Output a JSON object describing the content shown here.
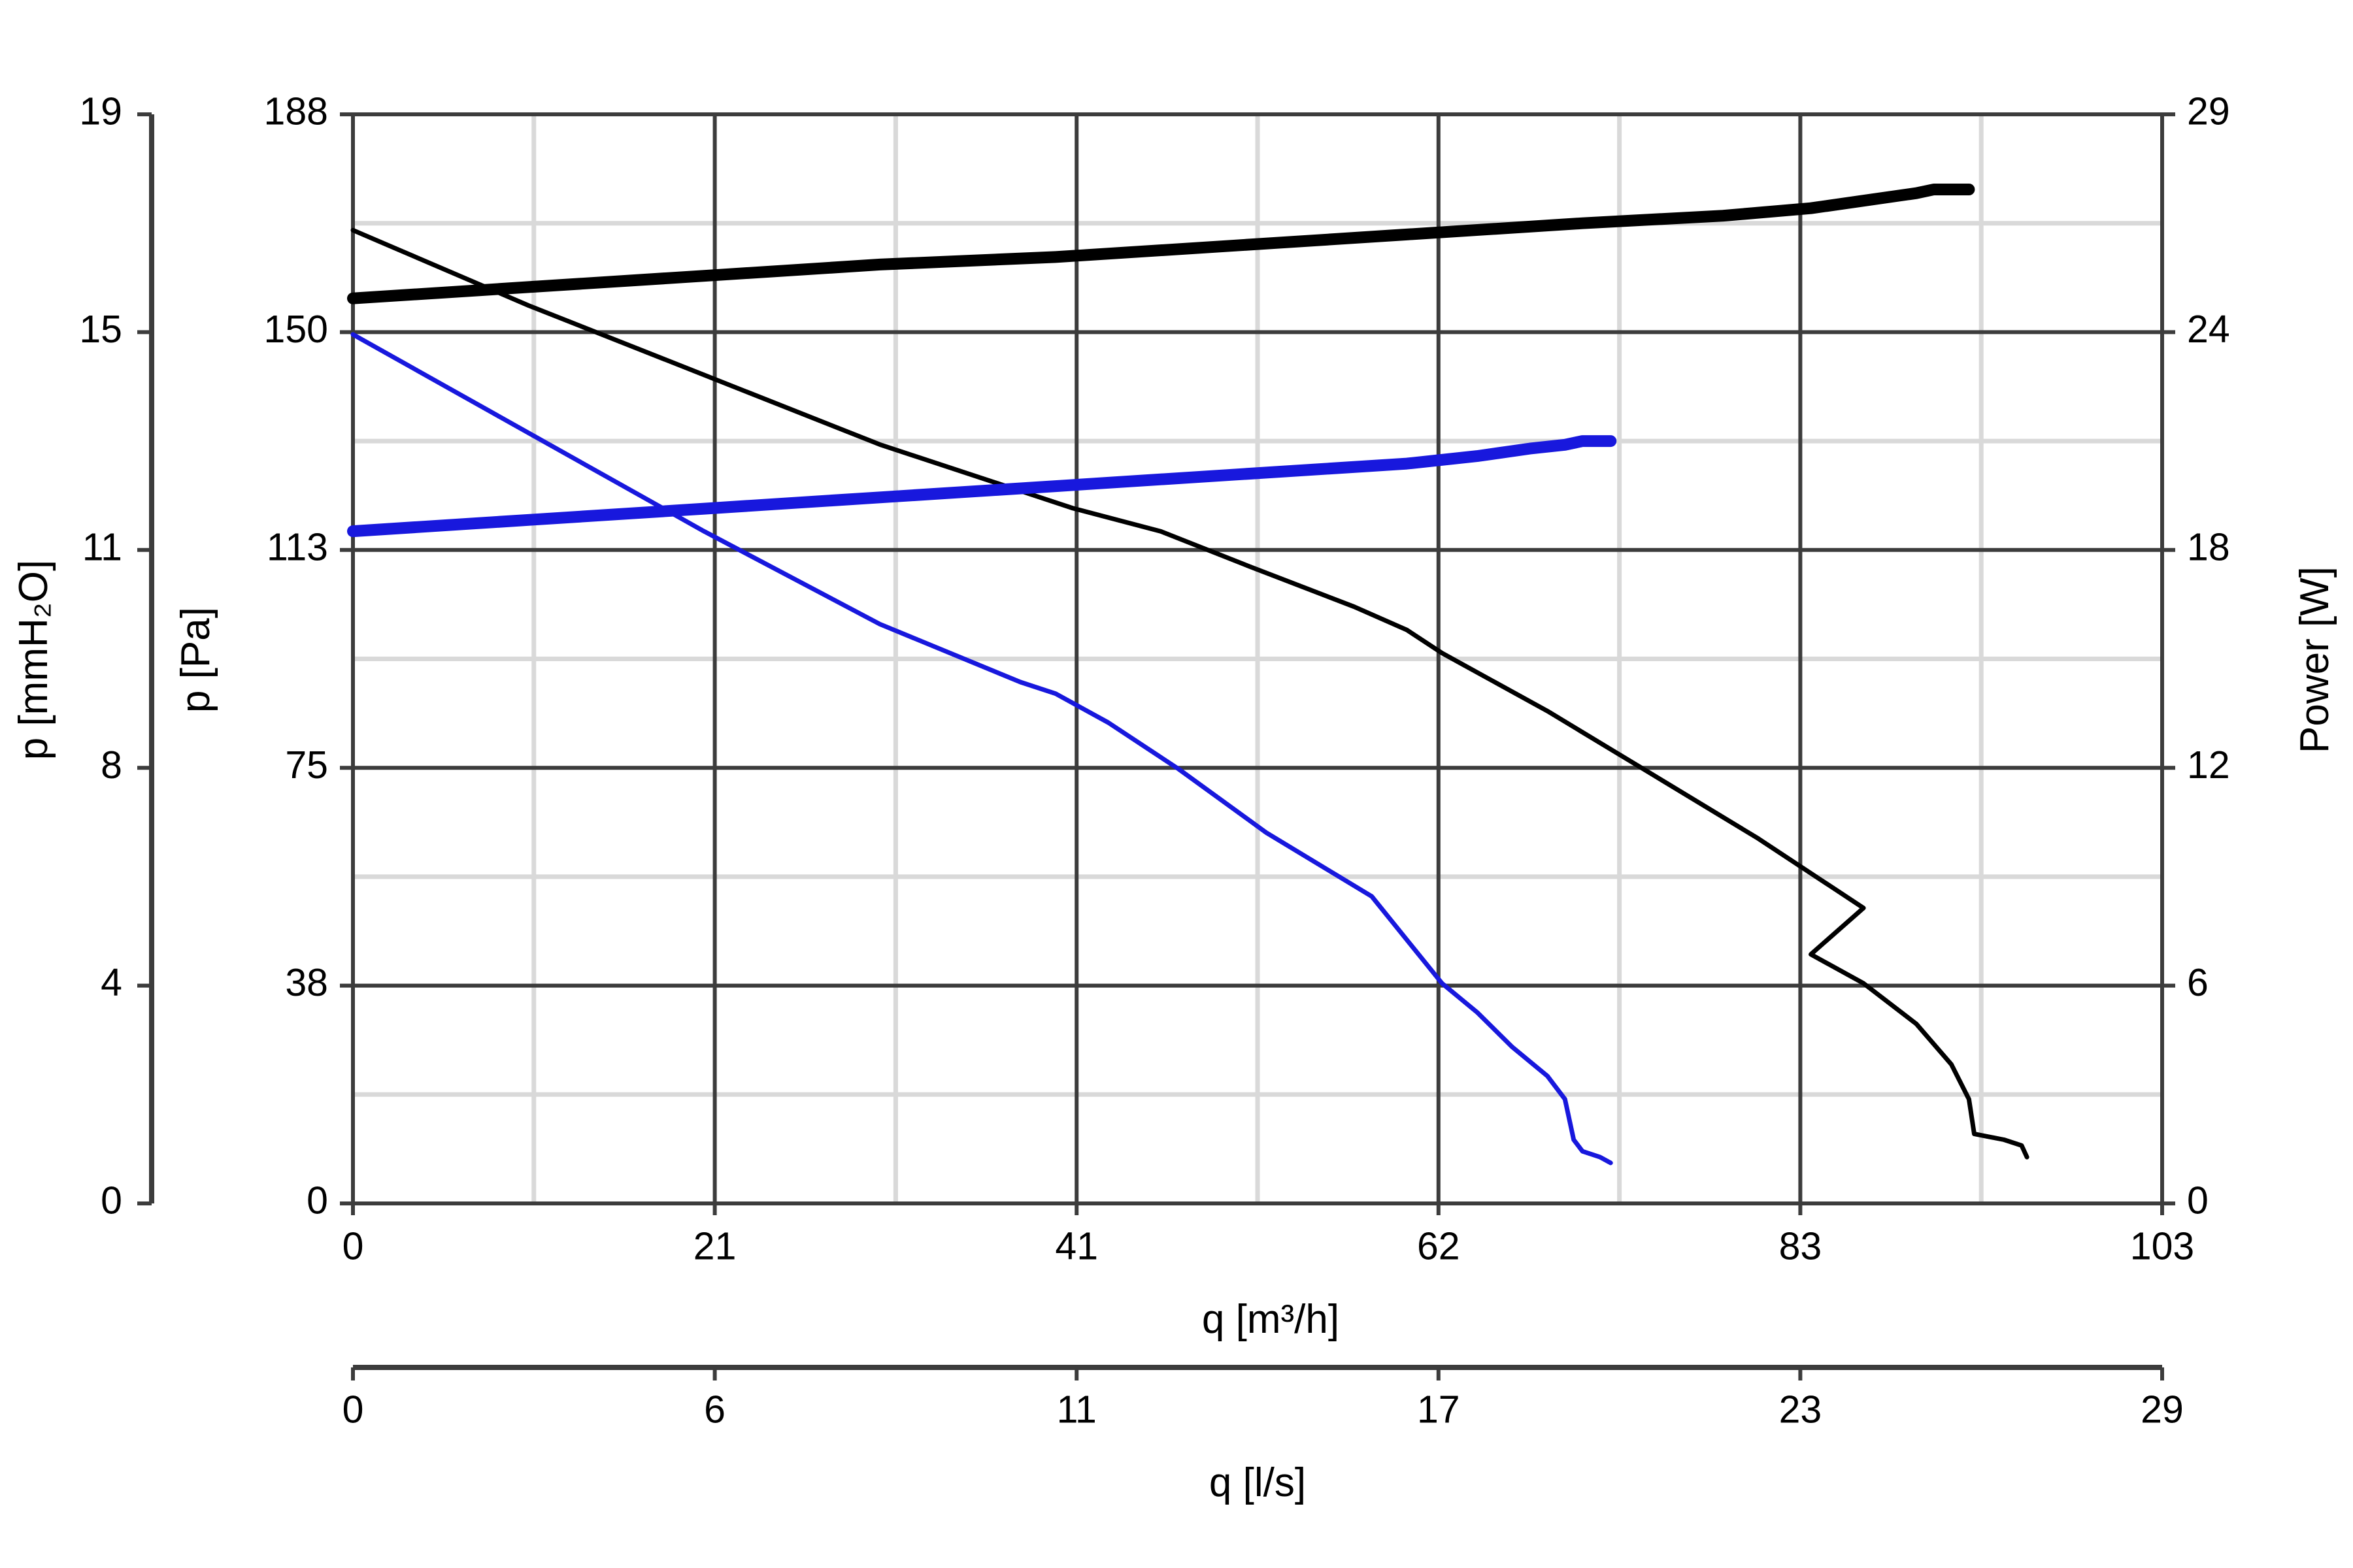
{
  "chart_data": {
    "type": "line",
    "x_axis": {
      "label": "q [m³/h]",
      "range": [
        0,
        103
      ],
      "ticks": [
        "0",
        "21",
        "41",
        "62",
        "83",
        "103"
      ]
    },
    "x_axis_secondary": {
      "label": "q [l/s]",
      "range": [
        0,
        29
      ],
      "ticks": [
        "0",
        "6",
        "11",
        "17",
        "23",
        "29"
      ]
    },
    "y_axis_left": {
      "label": "p [Pa]",
      "range": [
        0,
        188
      ],
      "ticks": [
        "0",
        "38",
        "75",
        "113",
        "150",
        "188"
      ]
    },
    "y_axis_left_outer": {
      "label": "p [mmH₂O]",
      "range": [
        0,
        19
      ],
      "ticks": [
        "0",
        "4",
        "8",
        "11",
        "15",
        "19"
      ]
    },
    "y_axis_right": {
      "label": "Power [W]",
      "range": [
        0,
        29
      ],
      "ticks": [
        "0",
        "6",
        "12",
        "18",
        "24",
        "29"
      ]
    },
    "grid": true,
    "series": [
      {
        "kind": "pressure",
        "axis": "left",
        "color": "#000000",
        "points": [
          [
            0,
            168
          ],
          [
            10,
            155
          ],
          [
            20,
            143
          ],
          [
            30,
            131
          ],
          [
            41,
            120
          ],
          [
            46,
            116
          ],
          [
            51,
            110
          ],
          [
            57,
            103
          ],
          [
            60,
            99
          ],
          [
            62,
            95
          ],
          [
            68,
            85
          ],
          [
            74,
            74
          ],
          [
            80,
            63
          ],
          [
            86,
            51
          ],
          [
            83,
            43
          ],
          [
            86,
            38
          ],
          [
            89,
            31
          ],
          [
            91,
            24
          ],
          [
            92,
            18
          ],
          [
            92.3,
            12
          ],
          [
            94,
            11
          ],
          [
            95,
            10
          ],
          [
            95.3,
            8
          ]
        ]
      },
      {
        "kind": "pressure",
        "axis": "left",
        "color": "#1818dd",
        "points": [
          [
            0,
            150
          ],
          [
            10,
            133
          ],
          [
            20,
            116
          ],
          [
            30,
            100
          ],
          [
            38,
            90
          ],
          [
            40,
            88
          ],
          [
            43,
            83
          ],
          [
            47,
            75
          ],
          [
            52,
            64
          ],
          [
            58,
            53
          ],
          [
            62,
            38
          ],
          [
            64,
            33
          ],
          [
            66,
            27
          ],
          [
            68,
            22
          ],
          [
            69,
            18
          ],
          [
            69.5,
            11
          ],
          [
            70,
            9
          ],
          [
            71,
            8
          ],
          [
            71.6,
            7
          ]
        ]
      },
      {
        "kind": "power",
        "axis": "right",
        "color": "#000000",
        "points": [
          [
            0,
            24.1
          ],
          [
            10,
            24.4
          ],
          [
            20,
            24.7
          ],
          [
            30,
            25.0
          ],
          [
            40,
            25.2
          ],
          [
            50,
            25.5
          ],
          [
            60,
            25.8
          ],
          [
            70,
            26.1
          ],
          [
            78,
            26.3
          ],
          [
            83,
            26.5
          ],
          [
            86,
            26.7
          ],
          [
            89,
            26.9
          ],
          [
            90,
            27.0
          ],
          [
            92,
            27.0
          ]
        ]
      },
      {
        "kind": "power",
        "axis": "right",
        "color": "#1818dd",
        "points": [
          [
            0,
            17.9
          ],
          [
            10,
            18.2
          ],
          [
            20,
            18.5
          ],
          [
            30,
            18.8
          ],
          [
            40,
            19.1
          ],
          [
            50,
            19.4
          ],
          [
            60,
            19.7
          ],
          [
            64,
            19.9
          ],
          [
            67,
            20.1
          ],
          [
            69,
            20.2
          ],
          [
            70,
            20.3
          ],
          [
            71.6,
            20.3
          ]
        ]
      }
    ]
  }
}
